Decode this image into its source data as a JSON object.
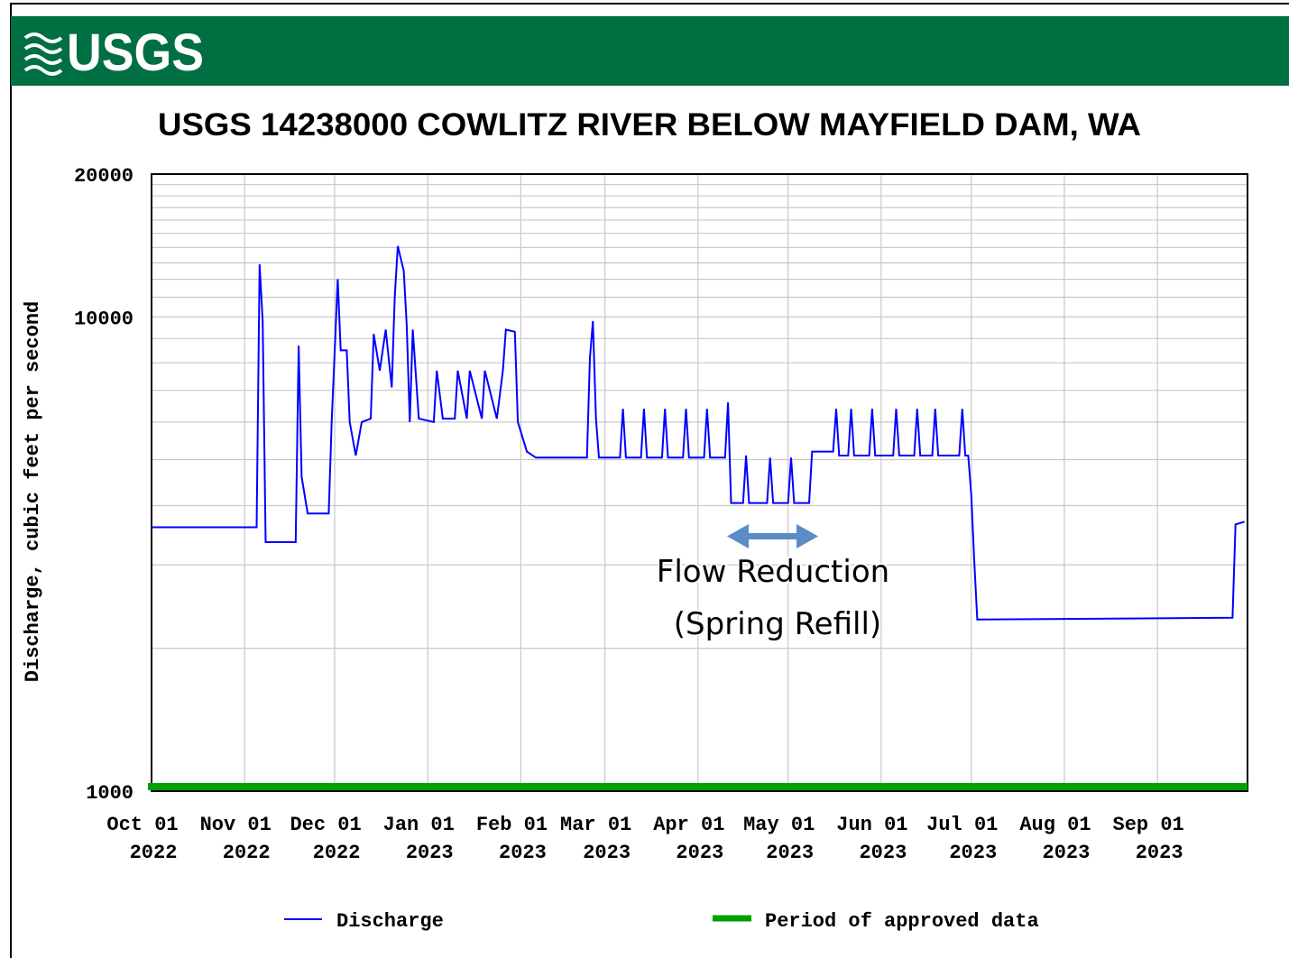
{
  "header": {
    "logo": "USGS"
  },
  "chart_data": {
    "type": "line",
    "title": "USGS 14238000 COWLITZ RIVER BELOW MAYFIELD DAM, WA",
    "ylabel": "Discharge, cubic feet per second",
    "log_y": true,
    "grid": true,
    "ylim": [
      1000,
      20000
    ],
    "yticks": [
      1000,
      10000,
      20000
    ],
    "yminor": [
      2000,
      3000,
      4000,
      5000,
      6000,
      7000,
      8000,
      9000,
      11000,
      12000,
      13000,
      14000,
      15000,
      16000,
      17000,
      18000,
      19000
    ],
    "xlim": [
      "2022-10-01",
      "2023-10-01"
    ],
    "xticks": [
      {
        "value": "2022-10-01",
        "label": "Oct 01",
        "year": "2022"
      },
      {
        "value": "2022-11-01",
        "label": "Nov 01",
        "year": "2022"
      },
      {
        "value": "2022-12-01",
        "label": "Dec 01",
        "year": "2022"
      },
      {
        "value": "2023-01-01",
        "label": "Jan 01",
        "year": "2023"
      },
      {
        "value": "2023-02-01",
        "label": "Feb 01",
        "year": "2023"
      },
      {
        "value": "2023-03-01",
        "label": "Mar 01",
        "year": "2023"
      },
      {
        "value": "2023-04-01",
        "label": "Apr 01",
        "year": "2023"
      },
      {
        "value": "2023-05-01",
        "label": "May 01",
        "year": "2023"
      },
      {
        "value": "2023-06-01",
        "label": "Jun 01",
        "year": "2023"
      },
      {
        "value": "2023-07-01",
        "label": "Jul 01",
        "year": "2023"
      },
      {
        "value": "2023-08-01",
        "label": "Aug 01",
        "year": "2023"
      },
      {
        "value": "2023-09-01",
        "label": "Sep 01",
        "year": "2023"
      }
    ],
    "x": [
      "2022-10-01",
      "2022-11-05",
      "2022-11-06",
      "2022-11-07",
      "2022-11-08",
      "2022-11-18",
      "2022-11-19",
      "2022-11-20",
      "2022-11-22",
      "2022-11-29",
      "2022-11-30",
      "2022-12-01",
      "2022-12-02",
      "2022-12-03",
      "2022-12-05",
      "2022-12-06",
      "2022-12-08",
      "2022-12-10",
      "2022-12-13",
      "2022-12-14",
      "2022-12-16",
      "2022-12-18",
      "2022-12-20",
      "2022-12-21",
      "2022-12-22",
      "2022-12-24",
      "2022-12-25",
      "2022-12-26",
      "2022-12-27",
      "2022-12-29",
      "2023-01-03",
      "2023-01-04",
      "2023-01-06",
      "2023-01-10",
      "2023-01-11",
      "2023-01-14",
      "2023-01-15",
      "2023-01-19",
      "2023-01-20",
      "2023-01-24",
      "2023-01-26",
      "2023-01-27",
      "2023-01-30",
      "2023-01-31",
      "2023-02-03",
      "2023-02-06",
      "2023-02-23",
      "2023-02-24",
      "2023-02-25",
      "2023-02-26",
      "2023-02-27",
      "2023-03-06",
      "2023-03-07",
      "2023-03-08",
      "2023-03-13",
      "2023-03-14",
      "2023-03-15",
      "2023-03-20",
      "2023-03-21",
      "2023-03-22",
      "2023-03-27",
      "2023-03-28",
      "2023-03-29",
      "2023-04-03",
      "2023-04-04",
      "2023-04-05",
      "2023-04-10",
      "2023-04-11",
      "2023-04-12",
      "2023-04-16",
      "2023-04-17",
      "2023-04-18",
      "2023-04-24",
      "2023-04-25",
      "2023-04-26",
      "2023-05-01",
      "2023-05-02",
      "2023-05-03",
      "2023-05-08",
      "2023-05-09",
      "2023-05-16",
      "2023-05-17",
      "2023-05-18",
      "2023-05-21",
      "2023-05-22",
      "2023-05-23",
      "2023-05-28",
      "2023-05-29",
      "2023-05-30",
      "2023-06-05",
      "2023-06-06",
      "2023-06-07",
      "2023-06-12",
      "2023-06-13",
      "2023-06-14",
      "2023-06-18",
      "2023-06-19",
      "2023-06-20",
      "2023-06-27",
      "2023-06-28",
      "2023-06-29",
      "2023-06-30",
      "2023-07-01",
      "2023-07-02",
      "2023-07-03",
      "2023-09-26",
      "2023-09-27",
      "2023-09-30"
    ],
    "series": [
      {
        "name": "Discharge",
        "color": "#0000ff",
        "values": [
          3600,
          3600,
          12900,
          9800,
          3350,
          3350,
          8700,
          4600,
          3850,
          3850,
          6000,
          8500,
          12000,
          8500,
          8500,
          6000,
          5100,
          6000,
          6100,
          9200,
          7700,
          9400,
          7100,
          11000,
          14100,
          12500,
          9600,
          6000,
          9400,
          6100,
          6000,
          7700,
          6100,
          6100,
          7700,
          6100,
          7700,
          6100,
          7700,
          6100,
          7700,
          9400,
          9300,
          6000,
          5200,
          5050,
          5050,
          8200,
          9800,
          6100,
          5050,
          5050,
          6400,
          5050,
          5050,
          6400,
          5050,
          5050,
          6400,
          5050,
          5050,
          6400,
          5050,
          5050,
          6400,
          5050,
          5050,
          6600,
          4050,
          4050,
          5100,
          4050,
          4050,
          5050,
          4050,
          4050,
          5050,
          4050,
          4050,
          5200,
          5200,
          6400,
          5100,
          5100,
          6400,
          5100,
          5100,
          6400,
          5100,
          5100,
          6400,
          5100,
          5100,
          6400,
          5100,
          5100,
          6400,
          5100,
          5100,
          6400,
          5100,
          5100,
          4200,
          3050,
          2300,
          2320,
          3650,
          3700
        ]
      }
    ],
    "approved_period": {
      "name": "Period of approved data",
      "color": "#00a000",
      "x": [
        "2022-10-01",
        "2023-10-01"
      ]
    },
    "annotations": [
      "Flow Reduction",
      "(Spring Refill)"
    ]
  }
}
